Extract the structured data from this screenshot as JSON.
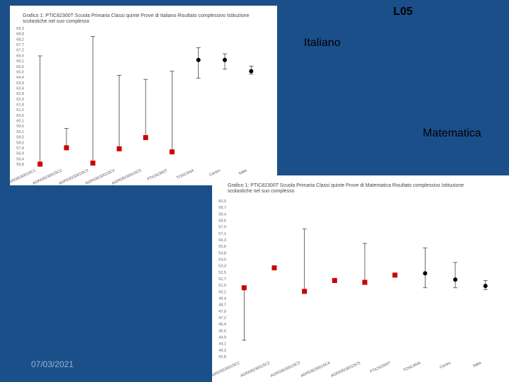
{
  "slide": {
    "title": "L05",
    "label_italiano": "Italiano",
    "label_matematica": "Matematica",
    "date": "07/03/2021"
  },
  "colors": {
    "background": "#1a4f8a",
    "school": "#cc0000",
    "reference": "#000000"
  },
  "chart_data": [
    {
      "type": "scatter",
      "title": "Grafico 1: PTIC82300T  Scuola Primaria  Classi quinte  Prove di Italiano Risultato complessivo  Istituzione scolastiche nel suo complesso",
      "ylim": [
        56.0,
        69.3
      ],
      "ytick_labels": [
        "69,3",
        "68,8",
        "68,2",
        "67,7",
        "67,2",
        "66,6",
        "66,1",
        "65,6",
        "65,0",
        "64,4",
        "63,9",
        "63,4",
        "62,8",
        "62,3",
        "61,8",
        "61,2",
        "60,6",
        "60,1",
        "59,6",
        "59,1",
        "58,5",
        "58,0",
        "57,4",
        "56,9",
        "56,4",
        "55,8"
      ],
      "categories": [
        "AGRG823001SC1",
        "AGRG823001SC2",
        "AGRG823001SC3",
        "AGRG823001SC4",
        "AGRG823001SC5",
        "PTIC82300T",
        "TOSCANA",
        "Centro",
        "Italia"
      ],
      "series": [
        {
          "values": [
            56.0,
            57.6,
            56.1,
            57.5,
            58.6,
            57.2
          ],
          "low": [
            56.0,
            57.6,
            56.1,
            57.5,
            58.6,
            57.2
          ],
          "high": [
            66.6,
            59.5,
            68.5,
            64.7,
            64.3,
            65.1
          ]
        },
        {
          "values": [
            66.2,
            66.2,
            65.1
          ],
          "low": [
            64.4,
            65.3,
            64.8
          ],
          "high": [
            67.4,
            66.8,
            65.6
          ]
        }
      ]
    },
    {
      "type": "scatter",
      "title": "Grafico 1: PTIC82300T  Scuola Primaria  Classi quinte  Prove di Matematica Risultato complessivo  Istituzione scolastiche nel suo complesso",
      "ylim": [
        42.8,
        60.0
      ],
      "ytick_labels": [
        "60,0",
        "59,7",
        "59,4",
        "58,6",
        "57,9",
        "57,1",
        "56,3",
        "55,6",
        "54,8",
        "54,0",
        "53,3",
        "52,5",
        "51,7",
        "51,0",
        "50,2",
        "49,4",
        "48,7",
        "47,9",
        "47,2",
        "46,4",
        "45,6",
        "44,9",
        "44,1",
        "43,3",
        "42,8"
      ],
      "categories": [
        "AGRG823001SC1",
        "AGRG823001SC2",
        "AGRG823001SC3",
        "AGRG823001SC4",
        "AGRG823001SC5",
        "PTIC82300T",
        "TOSCANA",
        "Centro",
        "Italia"
      ],
      "series": [
        {
          "values": [
            50.4,
            52.6,
            50.0,
            51.2,
            51.0,
            51.8
          ],
          "low": [
            44.6,
            52.6,
            50.0,
            51.2,
            51.0,
            51.8
          ],
          "high": [
            50.4,
            52.6,
            56.9,
            51.2,
            55.3,
            51.8
          ]
        },
        {
          "values": [
            52.0,
            51.3,
            50.6
          ],
          "low": [
            50.4,
            50.4,
            50.2
          ],
          "high": [
            54.8,
            53.2,
            51.2
          ]
        }
      ]
    }
  ]
}
